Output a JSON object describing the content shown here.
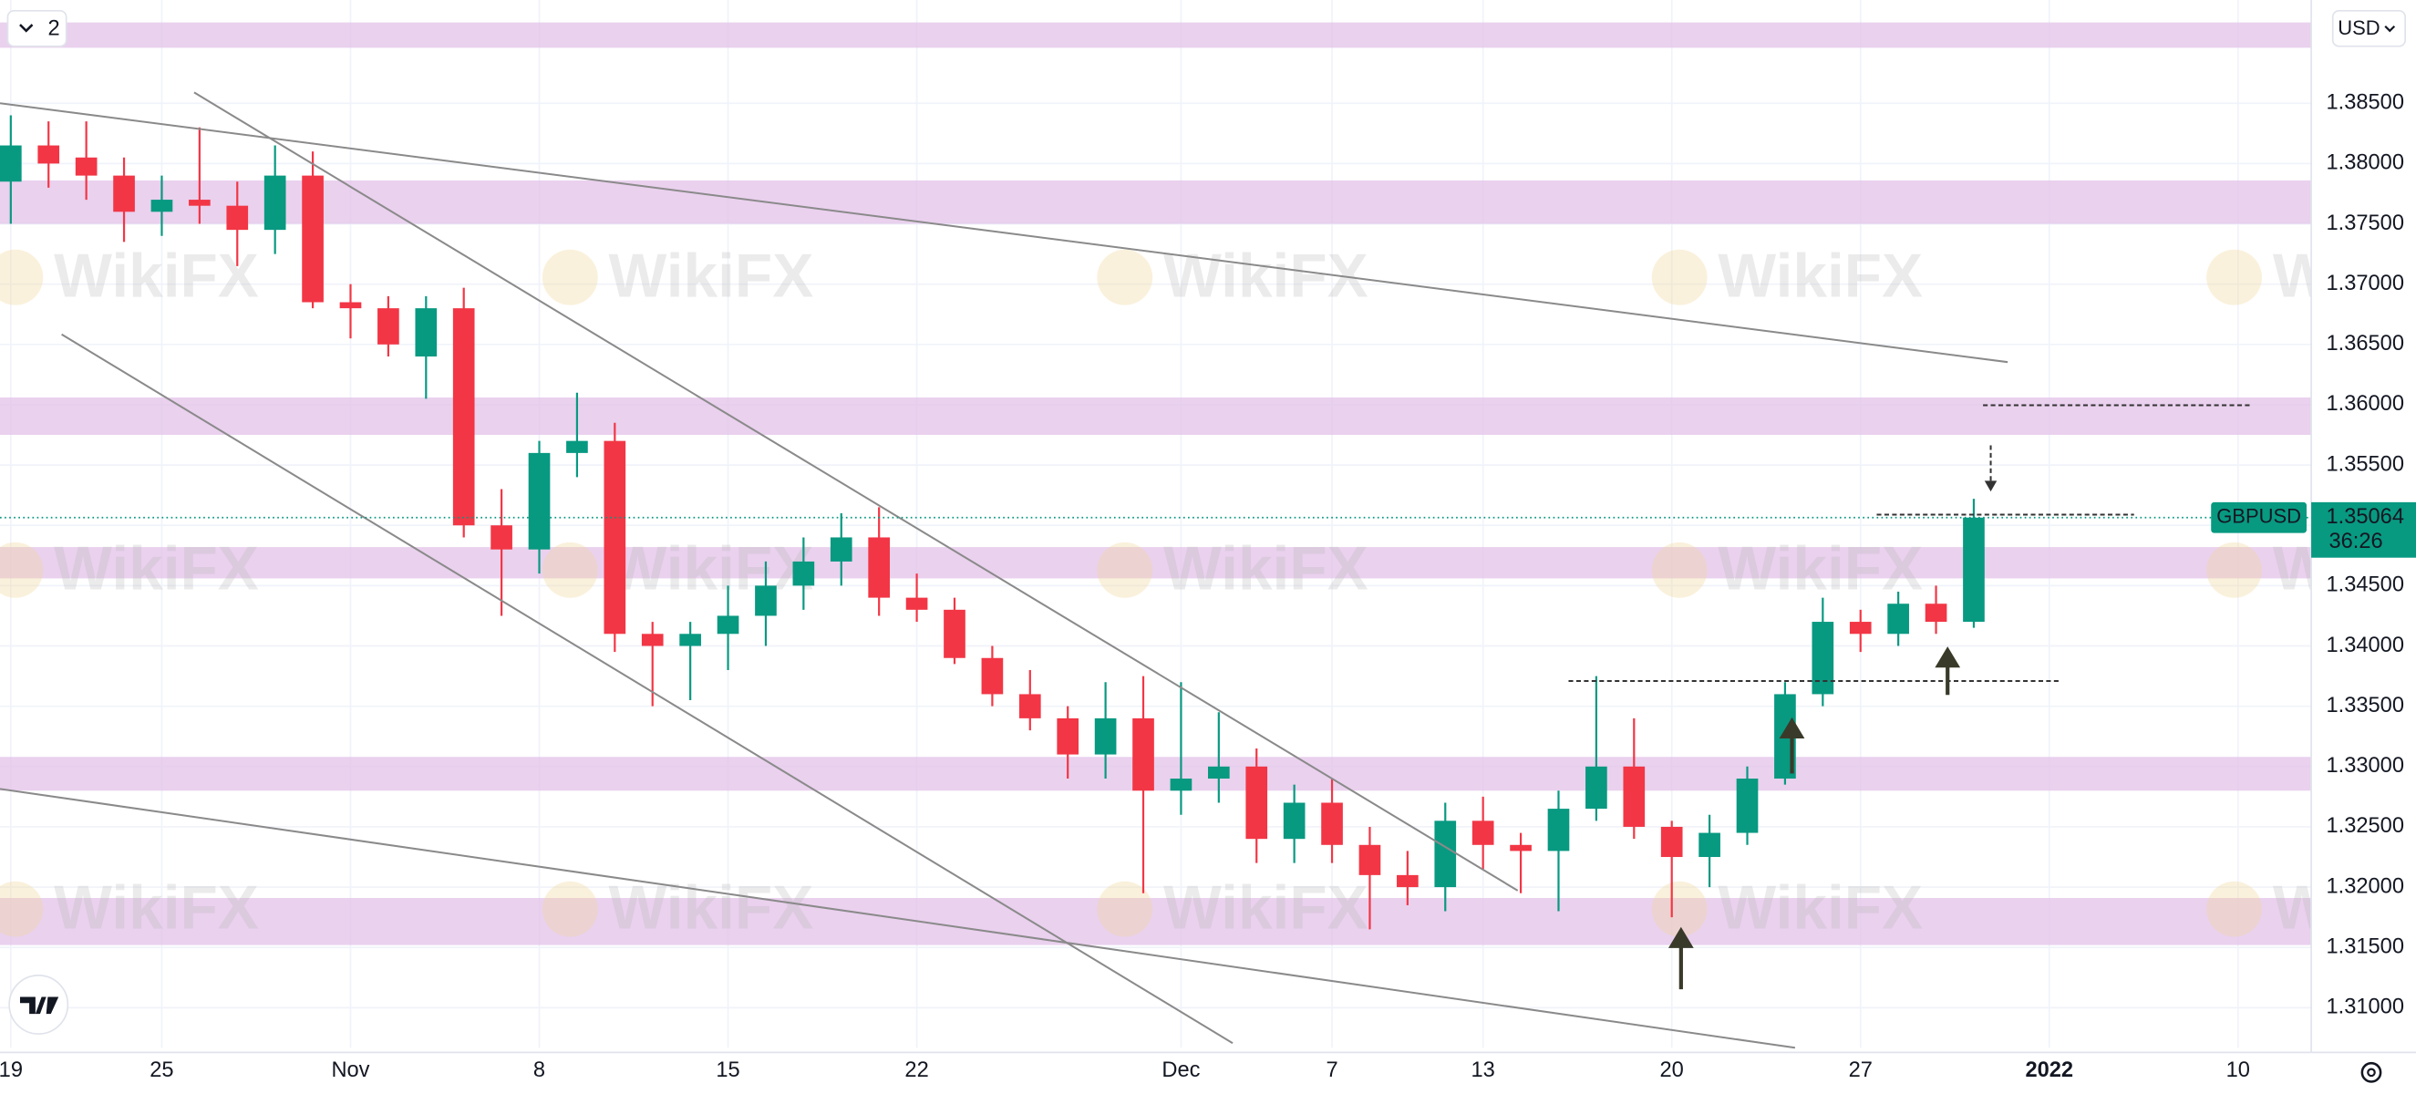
{
  "ui": {
    "indicator_count": "2",
    "currency": "USD"
  },
  "chart_data": {
    "type": "candlestick",
    "symbol": "GBPUSD",
    "last_price": 1.35064,
    "countdown": "36:26",
    "watermark": "WikiFX",
    "up_color": "#089981",
    "down_color": "#f23645",
    "zone_color": "#e1bee7",
    "grid": true,
    "categories": [
      "19",
      null,
      null,
      null,
      "25",
      null,
      null,
      null,
      null,
      "Nov",
      null,
      null,
      null,
      null,
      "8",
      null,
      null,
      null,
      null,
      "15",
      null,
      null,
      null,
      null,
      "22",
      null,
      null,
      null,
      null,
      null,
      null,
      "Dec",
      null,
      null,
      null,
      "7",
      null,
      null,
      null,
      "13",
      null,
      null,
      null,
      null,
      "20",
      null,
      null,
      null,
      null,
      "27",
      null,
      null,
      null,
      null,
      "2022",
      null,
      null,
      null,
      null,
      "10",
      null,
      null
    ],
    "open": [
      1.3785,
      1.3815,
      1.3805,
      1.379,
      1.376,
      1.377,
      1.3765,
      1.3745,
      1.379,
      1.3685,
      1.368,
      1.364,
      1.368,
      1.35,
      1.348,
      1.356,
      1.357,
      1.341,
      1.34,
      1.341,
      1.3425,
      1.345,
      1.347,
      1.349,
      1.344,
      1.343,
      1.339,
      1.336,
      1.334,
      1.331,
      1.334,
      1.328,
      1.329,
      1.33,
      1.324,
      1.327,
      1.3235,
      1.321,
      1.32,
      1.3255,
      1.3235,
      1.323,
      1.3265,
      1.33,
      1.325,
      1.3225,
      1.3245,
      1.329,
      1.336,
      1.342,
      1.341,
      1.3435,
      1.342,
      null,
      null,
      null,
      null,
      null,
      null,
      null,
      null,
      null
    ],
    "high": [
      1.384,
      1.3835,
      1.3835,
      1.3805,
      1.379,
      1.383,
      1.3785,
      1.3815,
      1.381,
      1.37,
      1.369,
      1.369,
      1.3697,
      1.353,
      1.357,
      1.361,
      1.3585,
      1.342,
      1.342,
      1.345,
      1.347,
      1.349,
      1.351,
      1.3515,
      1.346,
      1.344,
      1.34,
      1.338,
      1.335,
      1.337,
      1.3375,
      1.337,
      1.3345,
      1.3315,
      1.3285,
      1.329,
      1.325,
      1.323,
      1.327,
      1.3275,
      1.3245,
      1.328,
      1.3375,
      1.334,
      1.3255,
      1.326,
      1.33,
      1.337,
      1.344,
      1.343,
      1.3445,
      1.345,
      1.3522,
      null,
      null,
      null,
      null,
      null,
      null,
      null,
      null,
      null
    ],
    "low": [
      1.375,
      1.378,
      1.377,
      1.3735,
      1.374,
      1.375,
      1.3715,
      1.3725,
      1.368,
      1.3655,
      1.364,
      1.3605,
      1.349,
      1.3425,
      1.346,
      1.354,
      1.3395,
      1.335,
      1.3355,
      1.338,
      1.34,
      1.343,
      1.345,
      1.3425,
      1.342,
      1.3385,
      1.335,
      1.333,
      1.329,
      1.329,
      1.3195,
      1.326,
      1.327,
      1.322,
      1.322,
      1.322,
      1.3165,
      1.3185,
      1.318,
      1.3215,
      1.3195,
      1.318,
      1.3255,
      1.324,
      1.3175,
      1.32,
      1.3235,
      1.3285,
      1.335,
      1.3395,
      1.34,
      1.341,
      1.3415,
      null,
      null,
      null,
      null,
      null,
      null,
      null,
      null,
      null
    ],
    "close": [
      1.3815,
      1.38,
      1.379,
      1.376,
      1.377,
      1.3765,
      1.3745,
      1.379,
      1.3685,
      1.368,
      1.365,
      1.368,
      1.35,
      1.348,
      1.356,
      1.357,
      1.341,
      1.34,
      1.341,
      1.3425,
      1.345,
      1.347,
      1.349,
      1.344,
      1.343,
      1.339,
      1.336,
      1.334,
      1.331,
      1.334,
      1.328,
      1.329,
      1.33,
      1.324,
      1.327,
      1.3235,
      1.321,
      1.32,
      1.3255,
      1.3235,
      1.323,
      1.3265,
      1.33,
      1.325,
      1.3225,
      1.3245,
      1.329,
      1.336,
      1.342,
      1.341,
      1.3435,
      1.342,
      1.35064,
      null,
      null,
      null,
      null,
      null,
      null,
      null,
      null,
      null
    ],
    "zones": [
      {
        "low": 1.3896,
        "high": 1.3917
      },
      {
        "low": 1.375,
        "high": 1.3786
      },
      {
        "low": 1.3575,
        "high": 1.3606
      },
      {
        "low": 1.3456,
        "high": 1.3482
      },
      {
        "low": 1.328,
        "high": 1.3308
      },
      {
        "low": 1.3152,
        "high": 1.3191
      }
    ],
    "ylim": [
      1.30668,
      1.39356
    ],
    "yticks": [
      {
        "value": 1.31,
        "label": "1.31000"
      },
      {
        "value": 1.315,
        "label": "1.31500"
      },
      {
        "value": 1.32,
        "label": "1.32000"
      },
      {
        "value": 1.325,
        "label": "1.32500"
      },
      {
        "value": 1.33,
        "label": "1.33000"
      },
      {
        "value": 1.335,
        "label": "1.33500"
      },
      {
        "value": 1.34,
        "label": "1.34000"
      },
      {
        "value": 1.345,
        "label": "1.34500"
      },
      {
        "value": 1.35,
        "label": "1.35000"
      },
      {
        "value": 1.355,
        "label": "1.35500"
      },
      {
        "value": 1.36,
        "label": "1.36000"
      },
      {
        "value": 1.365,
        "label": "1.36500"
      },
      {
        "value": 1.37,
        "label": "1.37000"
      },
      {
        "value": 1.375,
        "label": "1.37500"
      },
      {
        "value": 1.38,
        "label": "1.38000"
      },
      {
        "value": 1.385,
        "label": "1.38500"
      }
    ]
  }
}
